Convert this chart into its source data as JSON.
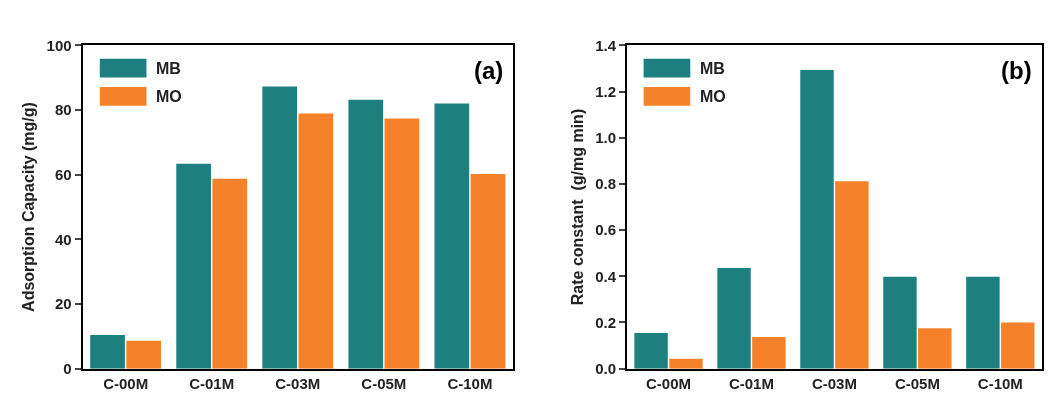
{
  "chart_data": [
    {
      "type": "bar",
      "ylabel": "Adsorption Capacity (mg/g)",
      "annotations": [
        "(a)"
      ],
      "categories": [
        "C-00M",
        "C-01M",
        "C-03M",
        "C-05M",
        "C-10M"
      ],
      "series": [
        {
          "name": "MB",
          "color": "#1e7f7f",
          "values": [
            10.4,
            63.4,
            87.3,
            83.2,
            82.0
          ]
        },
        {
          "name": "MO",
          "color": "#f5822a",
          "values": [
            8.6,
            58.7,
            78.9,
            77.4,
            60.2
          ]
        }
      ],
      "ylim": [
        0,
        100
      ],
      "yticks": [
        0,
        20,
        40,
        60,
        80,
        100
      ],
      "legend": "top left"
    },
    {
      "type": "bar",
      "ylabel": "Rate constant  (g/mg min)",
      "annotations": [
        "(b)"
      ],
      "categories": [
        "C-00M",
        "C-01M",
        "C-03M",
        "C-05M",
        "C-10M"
      ],
      "series": [
        {
          "name": "MB",
          "color": "#1e7f7f",
          "values": [
            0.154,
            0.436,
            1.293,
            0.398,
            0.398
          ]
        },
        {
          "name": "MO",
          "color": "#f5822a",
          "values": [
            0.043,
            0.137,
            0.812,
            0.175,
            0.2
          ]
        }
      ],
      "ylim": [
        0,
        1.4
      ],
      "yticks": [
        {
          "value": 0,
          "label": "0.0"
        },
        {
          "value": 0.2,
          "label": "0.2"
        },
        {
          "value": 0.4,
          "label": "0.4"
        },
        {
          "value": 0.6,
          "label": "0.6"
        },
        {
          "value": 0.8,
          "label": "0.8"
        },
        {
          "value": 1.0,
          "label": "1.0"
        },
        {
          "value": 1.2,
          "label": "1.2"
        },
        {
          "value": 1.4,
          "label": "1.4"
        }
      ],
      "legend": "top left"
    }
  ]
}
